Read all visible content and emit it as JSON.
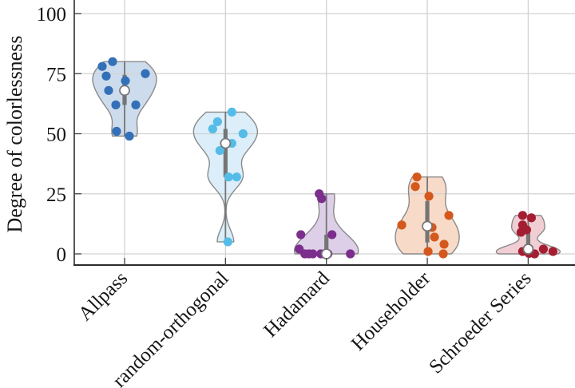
{
  "chart_data": {
    "type": "violin",
    "title": "",
    "ylabel": "Degree of colorlessness",
    "xlabel": "",
    "yticks": [
      0,
      25,
      50,
      75,
      100
    ],
    "ylim": [
      -4.7,
      105.6
    ],
    "grid": true,
    "legend_position": "none",
    "categories": [
      "Allpass",
      "random-orthogonal",
      "Hadamard",
      "Householder",
      "Schroeder Series"
    ],
    "series": [
      {
        "name": "Allpass",
        "dot_color": "#3370b8",
        "fill_color": "#c9d9ec",
        "bandwidth": 5,
        "values": [
          80,
          78,
          74,
          75,
          72,
          68,
          68,
          62,
          62,
          51,
          49
        ],
        "jitter": [
          -15,
          -28,
          -23,
          26,
          1,
          -20,
          0,
          -11,
          14,
          -10,
          6
        ]
      },
      {
        "name": "random-orthogonal",
        "dot_color": "#55bce8",
        "fill_color": "#d8edf8",
        "bandwidth": 5,
        "values": [
          59,
          55,
          52,
          50,
          46,
          43,
          32,
          32,
          5
        ],
        "jitter": [
          8,
          -10,
          -16,
          22,
          8,
          -7,
          4,
          14,
          3
        ]
      },
      {
        "name": "Hadamard",
        "dot_color": "#7c2e8c",
        "fill_color": "#dacbe6",
        "bandwidth": 6,
        "values": [
          25,
          23,
          8,
          8,
          2,
          0,
          0,
          0,
          0,
          0,
          0
        ],
        "jitter": [
          -9,
          -6,
          -32,
          7,
          -34,
          -27,
          -17,
          -7,
          30,
          -22,
          2
        ]
      },
      {
        "name": "Householder",
        "dot_color": "#d4581d",
        "fill_color": "#f7d7c3",
        "bandwidth": 5.5,
        "values": [
          32,
          28,
          24,
          16,
          12,
          11,
          7,
          4,
          1,
          0
        ],
        "jitter": [
          -13,
          -15,
          2,
          27,
          -32,
          6,
          9,
          21,
          1,
          20
        ]
      },
      {
        "name": "Schroeder Series",
        "dot_color": "#a41e33",
        "fill_color": "#f0cad0",
        "bandwidth": 2.5,
        "values": [
          16,
          15,
          12,
          10,
          9,
          2,
          1,
          1,
          1.5,
          0.2,
          0
        ],
        "jitter": [
          -7,
          4,
          -7,
          -2,
          -9,
          19,
          -7,
          31,
          -2,
          1,
          8
        ]
      }
    ],
    "style": {
      "outline_color": "#8a8a8a",
      "box_color": "#757575",
      "median_fill": "#ffffff",
      "grid_color": "#d2d2d2",
      "axis_color": "#2b2b2b",
      "tick_color": "#444444",
      "text_color": "#161616",
      "background": "#ffffff"
    }
  }
}
